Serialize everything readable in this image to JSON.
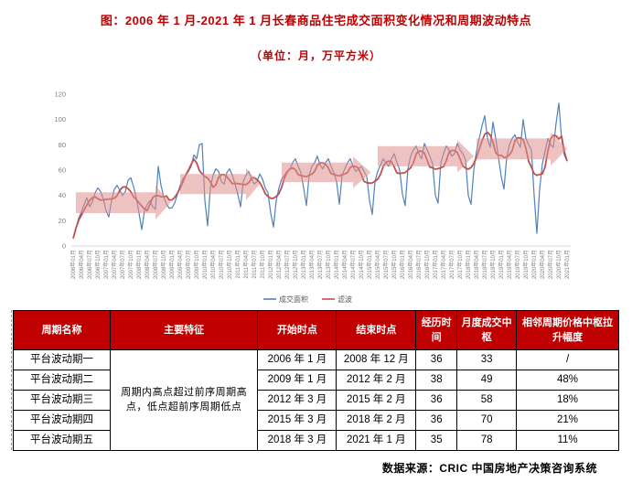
{
  "title": "图：2006 年 1 月-2021 年 1 月长春商品住宅成交面积变化情况和周期波动特点",
  "subtitle": "（单位：月，万平方米）",
  "source": "数据来源：CRIC 中国房地产决策咨询系统",
  "colors": {
    "series_blue": "#4f81bd",
    "series_red": "#c0504d",
    "arrow_pink": "#e0908c",
    "header_red": "#c00000",
    "title_red": "#c00000",
    "axis_text_gray": "#808080",
    "legend_text_gray": "#595959",
    "axis_line_gray": "#d9d9d9"
  },
  "chart_data": {
    "type": "line",
    "x_start": "2006年01月",
    "x_end": "2021年01月",
    "x_interval": "month",
    "n_points": 181,
    "ylim": [
      0,
      120
    ],
    "yticks": [
      0,
      20,
      40,
      60,
      80,
      100,
      120
    ],
    "grid": false,
    "legend_position": "bottom",
    "tick_labels": [
      "2006年01月",
      "2006年04月",
      "2006年07月",
      "2006年10月",
      "2007年01月",
      "2007年04月",
      "2007年07月",
      "2007年10月",
      "2008年01月",
      "2008年04月",
      "2008年07月",
      "2008年10月",
      "2009年01月",
      "2009年04月",
      "2009年07月",
      "2009年10月",
      "2010年01月",
      "2010年04月",
      "2010年07月",
      "2010年10月",
      "2011年01月",
      "2011年04月",
      "2011年07月",
      "2011年10月",
      "2012年01月",
      "2012年04月",
      "2012年07月",
      "2012年10月",
      "2013年01月",
      "2013年04月",
      "2013年07月",
      "2013年10月",
      "2014年01月",
      "2014年04月",
      "2014年07月",
      "2014年10月",
      "2015年01月",
      "2015年04月",
      "2015年07月",
      "2015年10月",
      "2016年01月",
      "2016年04月",
      "2016年07月",
      "2016年10月",
      "2017年01月",
      "2017年04月",
      "2017年07月",
      "2017年10月",
      "2018年01月",
      "2018年04月",
      "2018年07月",
      "2018年10月",
      "2019年01月",
      "2019年04月",
      "2019年07月",
      "2019年10月",
      "2020年01月",
      "2020年04月",
      "2020年07月",
      "2020年10月",
      "2021年01月"
    ],
    "series": [
      {
        "name": "成交面积",
        "color": "#4f81bd",
        "values": [
          6,
          14,
          22,
          27,
          33,
          38,
          31,
          35,
          42,
          46,
          43,
          37,
          28,
          23,
          36,
          45,
          48,
          44,
          40,
          43,
          52,
          54,
          47,
          38,
          26,
          13,
          28,
          33,
          36,
          31,
          29,
          63,
          48,
          39,
          33,
          30,
          30,
          34,
          41,
          48,
          53,
          56,
          59,
          63,
          72,
          69,
          80,
          81,
          36,
          16,
          46,
          56,
          61,
          59,
          51,
          49,
          58,
          61,
          56,
          49,
          41,
          31,
          51,
          56,
          59,
          53,
          49,
          51,
          57,
          53,
          46,
          42,
          26,
          15,
          36,
          46,
          53,
          56,
          59,
          61,
          66,
          69,
          63,
          58,
          46,
          32,
          56,
          63,
          66,
          71,
          64,
          61,
          66,
          69,
          63,
          58,
          51,
          33,
          56,
          61,
          66,
          69,
          63,
          59,
          61,
          63,
          59,
          55,
          36,
          25,
          51,
          59,
          64,
          69,
          66,
          63,
          69,
          73,
          66,
          60,
          41,
          32,
          61,
          71,
          76,
          79,
          73,
          69,
          81,
          76,
          71,
          65,
          40,
          34,
          66,
          73,
          79,
          76,
          71,
          73,
          81,
          76,
          73,
          68,
          40,
          33,
          60,
          75,
          85,
          95,
          103,
          85,
          78,
          98,
          85,
          70,
          55,
          45,
          70,
          80,
          85,
          88,
          82,
          78,
          100,
          85,
          80,
          76,
          40,
          10,
          45,
          65,
          75,
          85,
          80,
          78,
          97,
          113,
          85,
          72,
          67
        ]
      },
      {
        "name": "滤波",
        "color": "#c0504d",
        "derived": "centered moving average of 成交面积, radius 3 (window shrinks at series edges)"
      }
    ],
    "annotations": {
      "plateau_arrows": [
        {
          "from_month": 1,
          "body_end_month": 30,
          "tip_month": 35.5,
          "value_low": 26,
          "value_high": 42.5
        },
        {
          "from_month": 39,
          "body_end_month": 63,
          "tip_month": 68,
          "value_low": 41,
          "value_high": 57
        },
        {
          "from_month": 76,
          "body_end_month": 102,
          "tip_month": 108.5,
          "value_low": 50.5,
          "value_high": 66
        },
        {
          "from_month": 111,
          "body_end_month": 140,
          "tip_month": 146,
          "value_low": 63,
          "value_high": 79
        },
        {
          "from_month": 147,
          "body_end_month": 174,
          "tip_month": 180,
          "value_low": 68.5,
          "value_high": 85
        }
      ]
    },
    "legend": [
      "成交面积",
      "滤波"
    ]
  },
  "table": {
    "headers": [
      "周期名称",
      "主要特征",
      "开始时点",
      "结束时点",
      "经历时间",
      "月度成交中枢",
      "相邻周期价格中枢拉升幅度"
    ],
    "merged_feature": "周期内高点超过前序周期高点，低点超前序周期低点",
    "rows": [
      {
        "name": "平台波动期一",
        "start": "2006 年 1 月",
        "end": "2008 年 12 月",
        "duration": "36",
        "center": "33",
        "lift": "/"
      },
      {
        "name": "平台波动期二",
        "start": "2009 年 1 月",
        "end": "2012 年 2 月",
        "duration": "38",
        "center": "49",
        "lift": "48%"
      },
      {
        "name": "平台波动期三",
        "start": "2012 年 3 月",
        "end": "2015 年 2 月",
        "duration": "36",
        "center": "58",
        "lift": "18%"
      },
      {
        "name": "平台波动期四",
        "start": "2015 年 3 月",
        "end": "2018 年 2 月",
        "duration": "36",
        "center": "70",
        "lift": "21%"
      },
      {
        "name": "平台波动期五",
        "start": "2018 年 3 月",
        "end": "2021 年 1 月",
        "duration": "35",
        "center": "78",
        "lift": "11%"
      }
    ]
  }
}
